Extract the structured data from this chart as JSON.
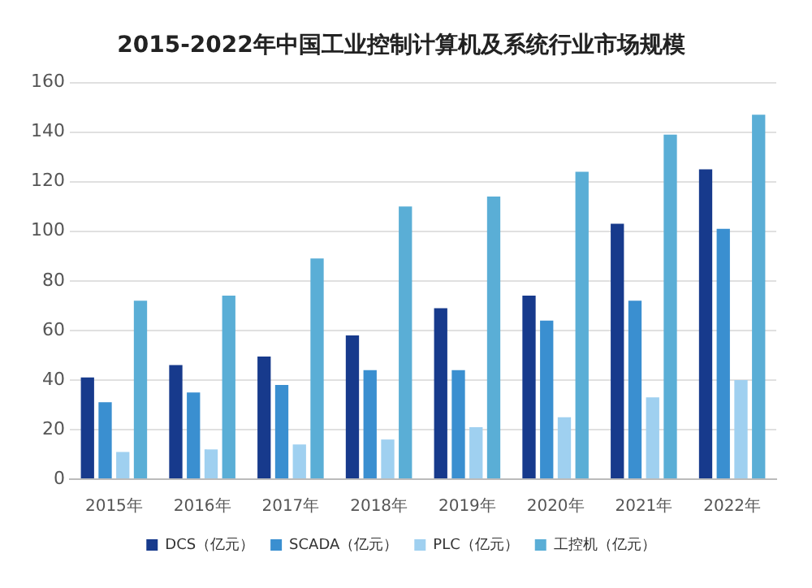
{
  "chart_data": {
    "type": "bar",
    "title": "2015-2022年中国工业控制计算机及系统行业市场规模",
    "categories": [
      "2015年",
      "2016年",
      "2017年",
      "2018年",
      "2019年",
      "2020年",
      "2021年",
      "2022年"
    ],
    "series": [
      {
        "name": "DCS（亿元）",
        "color": "#173a8c",
        "values": [
          41,
          46,
          49.5,
          58,
          69,
          74,
          103,
          125
        ]
      },
      {
        "name": "SCADA（亿元）",
        "color": "#3a8fd0",
        "values": [
          31,
          35,
          38,
          44,
          44,
          64,
          72,
          101
        ]
      },
      {
        "name": "PLC（亿元）",
        "color": "#9fd0f0",
        "values": [
          11,
          12,
          14,
          16,
          21,
          25,
          33,
          40
        ]
      },
      {
        "name": "工控机（亿元）",
        "color": "#5aaed6",
        "values": [
          72,
          74,
          89,
          110,
          114,
          124,
          139,
          147
        ]
      }
    ],
    "ylim": [
      0,
      160
    ],
    "yticks": [
      0,
      20,
      40,
      60,
      80,
      100,
      120,
      140,
      160
    ],
    "grid": "y",
    "legend": "bottom"
  }
}
